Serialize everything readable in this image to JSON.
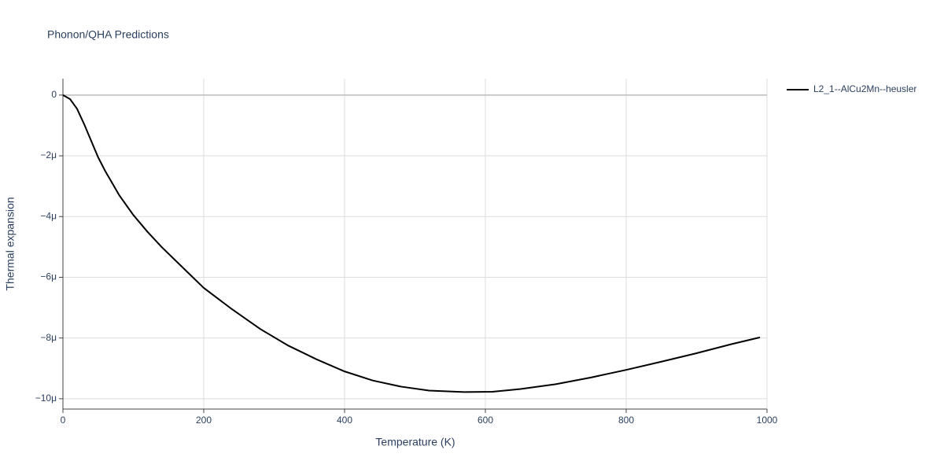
{
  "chart_data": {
    "type": "line",
    "title": "Phonon/QHA Predictions",
    "x_label": "Temperature (K)",
    "y_label": "Thermal expansion",
    "x": [
      0,
      10,
      20,
      30,
      40,
      50,
      60,
      70,
      80,
      100,
      120,
      140,
      160,
      180,
      200,
      240,
      280,
      320,
      360,
      400,
      440,
      480,
      520,
      570,
      610,
      650,
      700,
      750,
      800,
      850,
      900,
      950,
      990
    ],
    "series": [
      {
        "name": "L2_1--AlCu2Mn--heusler",
        "color": "#000000",
        "values": [
          0,
          -1.3e-07,
          -4.5e-07,
          -9.5e-07,
          -1.5e-06,
          -2.05e-06,
          -2.5e-06,
          -2.9e-06,
          -3.3e-06,
          -3.95e-06,
          -4.5e-06,
          -5e-06,
          -5.45e-06,
          -5.9e-06,
          -6.35e-06,
          -7.05e-06,
          -7.7e-06,
          -8.25e-06,
          -8.7e-06,
          -9.1e-06,
          -9.4e-06,
          -9.6e-06,
          -9.73e-06,
          -9.78e-06,
          -9.77e-06,
          -9.68e-06,
          -9.52e-06,
          -9.3e-06,
          -9.05e-06,
          -8.78e-06,
          -8.5e-06,
          -8.2e-06,
          -7.98e-06
        ]
      }
    ],
    "xlim": [
      0,
      1000
    ],
    "xticks": [
      0,
      200,
      400,
      600,
      800,
      1000
    ],
    "ylim": [
      -1.034e-05,
      5.4e-07
    ],
    "yticks": [
      0,
      {
        "value": -2e-06,
        "label": "−2μ"
      },
      {
        "value": -4e-06,
        "label": "−4μ"
      },
      {
        "value": -6e-06,
        "label": "−6μ"
      },
      {
        "value": -8e-06,
        "label": "−8μ"
      },
      {
        "value": -1e-05,
        "label": "−10μ"
      }
    ],
    "grid": true,
    "legend": "right"
  }
}
